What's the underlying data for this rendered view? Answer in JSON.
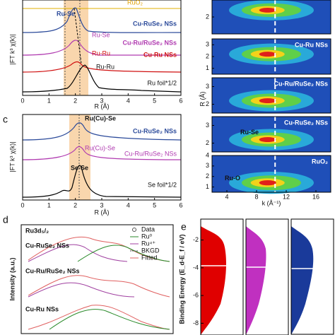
{
  "panel_a": {
    "y_label": "|FT k³ χ(k)|",
    "x_label": "R (Å)",
    "xlim": [
      0,
      6
    ],
    "xticks": [
      0,
      1,
      2,
      3,
      4,
      5,
      6
    ],
    "labels": [
      "RuO₂",
      "Ru-Se",
      "Cu-RuSe₂ NSs",
      "Ru-Se",
      "Cu-Ru/RuSe₂ NSs",
      "Ru-Ru",
      "Cu-Ru NSs",
      "Ru-Ru",
      "Ru foil*1/2"
    ]
  },
  "panel_c": {
    "letter": "c",
    "y_label": "|FT k³ χ(k)|",
    "x_label": "R (Å)",
    "xlim": [
      0,
      6
    ],
    "xticks": [
      0,
      1,
      2,
      3,
      4,
      5,
      6
    ],
    "labels": [
      "Ru(Cu)-Se",
      "Cu-RuSe₂ NSs",
      "Ru(Cu)-Se",
      "Cu-Ru/RuSe₂ NSs",
      "Se-Se",
      "Se foil*1/2"
    ]
  },
  "panel_b": {
    "y_label": "R (Å)",
    "x_label": "k (Å⁻¹)",
    "xlim": [
      2,
      18
    ],
    "xticks": [
      4,
      8,
      12,
      16
    ],
    "subpanels": [
      {
        "label": "",
        "yticks": [
          2
        ]
      },
      {
        "label": "Cu-Ru NSs",
        "yticks": [
          1,
          2,
          3
        ]
      },
      {
        "label": "Cu-Ru/RuSe₂ NSs",
        "yticks": [
          2,
          3
        ]
      },
      {
        "label": "Cu-RuSe₂ NSs",
        "yticks": [
          2,
          3
        ],
        "bond": "Ru-Se"
      },
      {
        "label": "RuO₂",
        "yticks": [
          1,
          2,
          3,
          4
        ],
        "bond": "Ru-O"
      }
    ]
  },
  "panel_d": {
    "letter": "d",
    "title": "Ru3d₅/₂",
    "y_label": "Intensity (a.u.)",
    "legend": [
      "Data",
      "Ru⁰",
      "Ru⁴⁺",
      "BKGD",
      "Fitted"
    ],
    "labels": [
      "Cu-RuSe₂ NSs",
      "Cu-Ru/RuSe₂ NSs",
      "Cu-Ru NSs"
    ]
  },
  "panel_e": {
    "letter": "e",
    "y_label": "Binding Energy (E_d-E_f / eV)",
    "ylim": [
      -9,
      -1
    ],
    "yticks": [
      -2,
      -4,
      -6,
      -8
    ]
  }
}
